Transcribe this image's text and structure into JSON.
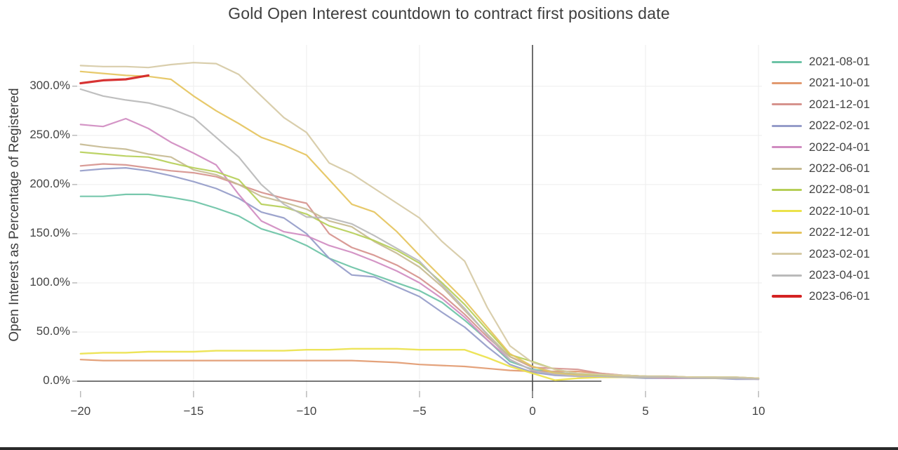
{
  "chart_data": {
    "type": "line",
    "title": "Gold Open Interest countdown to contract first positions date",
    "xlabel": "",
    "ylabel": "Open Interest as Percentage of Registered",
    "xlim": [
      -20.15,
      10.15
    ],
    "ylim": [
      -10,
      342
    ],
    "grid": true,
    "legend_position": "right",
    "axis_line_color": "#4a4a4a",
    "grid_color": "#ededed",
    "tick_color": "#999999",
    "x_ticks": [
      {
        "value": -20,
        "label": "−20"
      },
      {
        "value": -15,
        "label": "−15"
      },
      {
        "value": -10,
        "label": "−10"
      },
      {
        "value": -5,
        "label": "−5"
      },
      {
        "value": 0,
        "label": "0"
      },
      {
        "value": 5,
        "label": "5"
      },
      {
        "value": 10,
        "label": "10"
      }
    ],
    "y_ticks": [
      {
        "value": 0,
        "label": "0.0%"
      },
      {
        "value": 50,
        "label": "50.0%"
      },
      {
        "value": 100,
        "label": "100.0%"
      },
      {
        "value": 150,
        "label": "150.0%"
      },
      {
        "value": 200,
        "label": "200.0%"
      },
      {
        "value": 250,
        "label": "250.0%"
      },
      {
        "value": 300,
        "label": "300.0%"
      }
    ],
    "zero_vline_x": 0,
    "zero_hline_y": 0,
    "x_step": 1,
    "series": [
      {
        "name": "2021-08-01",
        "color": "#6cc3a6",
        "width": 2.2,
        "x_start": -20,
        "values": [
          188,
          188,
          190,
          190,
          187,
          183,
          176,
          168,
          155,
          148,
          138,
          125,
          116,
          108,
          100,
          92,
          80,
          62,
          42,
          20,
          12,
          9,
          7,
          6,
          5,
          5,
          4,
          4,
          3,
          3,
          3
        ]
      },
      {
        "name": "2021-10-01",
        "color": "#e29a70",
        "width": 2.2,
        "x_start": -20,
        "values": [
          22,
          21,
          21,
          21,
          21,
          21,
          21,
          21,
          21,
          21,
          21,
          21,
          21,
          20,
          19,
          17,
          16,
          15,
          13,
          11,
          10,
          10,
          10,
          8,
          6,
          5,
          5,
          4,
          4,
          4,
          3
        ]
      },
      {
        "name": "2021-12-01",
        "color": "#d6938d",
        "width": 2.2,
        "x_start": -20,
        "values": [
          219,
          221,
          220,
          217,
          214,
          212,
          208,
          200,
          192,
          186,
          181,
          150,
          136,
          128,
          118,
          105,
          88,
          68,
          45,
          25,
          14,
          13,
          12,
          8,
          6,
          5,
          4,
          4,
          4,
          3,
          3
        ]
      },
      {
        "name": "2022-02-01",
        "color": "#959cc9",
        "width": 2.2,
        "x_start": -20,
        "values": [
          214,
          216,
          217,
          214,
          209,
          203,
          196,
          186,
          172,
          166,
          150,
          125,
          108,
          106,
          96,
          86,
          70,
          55,
          35,
          17,
          9,
          6,
          5,
          4,
          4,
          3,
          3,
          3,
          3,
          2,
          2
        ]
      },
      {
        "name": "2022-04-01",
        "color": "#d08cc1",
        "width": 2.2,
        "x_start": -20,
        "values": [
          261,
          259,
          267,
          257,
          243,
          232,
          220,
          190,
          163,
          152,
          148,
          138,
          131,
          122,
          112,
          100,
          84,
          65,
          42,
          22,
          11,
          7,
          5,
          4,
          4,
          4,
          3,
          3,
          3,
          3,
          2
        ]
      },
      {
        "name": "2022-06-01",
        "color": "#c7bb92",
        "width": 2.2,
        "x_start": -20,
        "values": [
          241,
          238,
          236,
          231,
          228,
          215,
          210,
          200,
          188,
          182,
          175,
          163,
          157,
          142,
          130,
          116,
          96,
          72,
          48,
          25,
          15,
          9,
          7,
          6,
          5,
          5,
          4,
          4,
          4,
          3,
          3
        ]
      },
      {
        "name": "2022-08-01",
        "color": "#b6cf58",
        "width": 2.2,
        "x_start": -20,
        "values": [
          233,
          231,
          229,
          228,
          222,
          217,
          213,
          205,
          180,
          177,
          170,
          158,
          151,
          143,
          133,
          120,
          100,
          78,
          52,
          27,
          20,
          12,
          8,
          6,
          6,
          5,
          5,
          4,
          4,
          4,
          3
        ]
      },
      {
        "name": "2022-10-01",
        "color": "#ebe24b",
        "width": 2.4,
        "x_start": -20,
        "values": [
          28,
          29,
          29,
          30,
          30,
          30,
          31,
          31,
          31,
          31,
          32,
          32,
          33,
          33,
          33,
          32,
          32,
          32,
          24,
          15,
          8,
          1,
          3,
          4,
          4,
          4,
          4,
          4,
          3,
          3,
          3
        ]
      },
      {
        "name": "2022-12-01",
        "color": "#e5c45e",
        "width": 2.2,
        "x_start": -20,
        "values": [
          315,
          313,
          311,
          310,
          307,
          290,
          275,
          262,
          248,
          240,
          230,
          205,
          180,
          172,
          152,
          128,
          105,
          82,
          55,
          28,
          15,
          8,
          6,
          5,
          5,
          4,
          4,
          4,
          3,
          3,
          3
        ]
      },
      {
        "name": "2023-02-01",
        "color": "#d6caa5",
        "width": 2.2,
        "x_start": -20,
        "values": [
          321,
          320,
          320,
          319,
          322,
          324,
          323,
          312,
          290,
          268,
          253,
          222,
          211,
          196,
          181,
          166,
          142,
          122,
          75,
          36,
          19,
          12,
          8,
          7,
          6,
          5,
          5,
          4,
          4,
          4,
          3
        ]
      },
      {
        "name": "2023-04-01",
        "color": "#bababa",
        "width": 2.2,
        "x_start": -20,
        "values": [
          297,
          290,
          286,
          283,
          277,
          268,
          248,
          228,
          200,
          180,
          167,
          166,
          160,
          148,
          135,
          122,
          98,
          74,
          47,
          22,
          11,
          7,
          5,
          5,
          4,
          4,
          4,
          3,
          3,
          3,
          2
        ]
      },
      {
        "name": "2023-06-01",
        "color": "#d42222",
        "width": 3.2,
        "x_start": -20,
        "values": [
          303,
          306,
          307,
          311
        ]
      }
    ]
  }
}
